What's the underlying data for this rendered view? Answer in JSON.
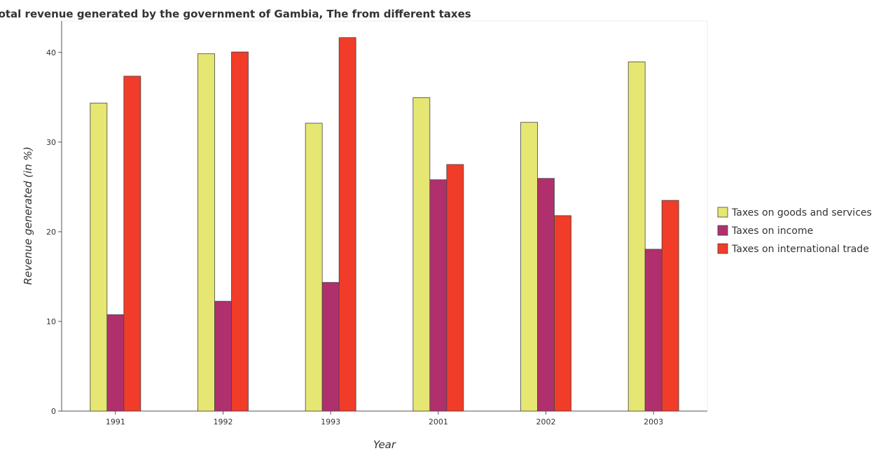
{
  "chart_data": {
    "type": "bar",
    "title": "Total revenue generated by the government of Gambia, The from different taxes",
    "xlabel": "Year",
    "ylabel": "Revenue generated (in %)",
    "categories": [
      "1991",
      "1992",
      "1993",
      "2001",
      "2002",
      "2003"
    ],
    "ylim": [
      0,
      43.5
    ],
    "yticks": [
      0,
      10,
      20,
      30,
      40
    ],
    "grid": false,
    "legend_position": "right",
    "series": [
      {
        "name": "Taxes on goods and services",
        "color": "#e6e673",
        "values": [
          34.35,
          39.85,
          32.1,
          34.95,
          32.2,
          38.95
        ]
      },
      {
        "name": "Taxes on income",
        "color": "#b0306e",
        "values": [
          10.75,
          12.25,
          14.35,
          25.8,
          25.95,
          18.05
        ]
      },
      {
        "name": "Taxes on international trade",
        "color": "#f03c28",
        "values": [
          37.35,
          40.05,
          41.65,
          27.5,
          21.8,
          23.5
        ]
      }
    ]
  }
}
